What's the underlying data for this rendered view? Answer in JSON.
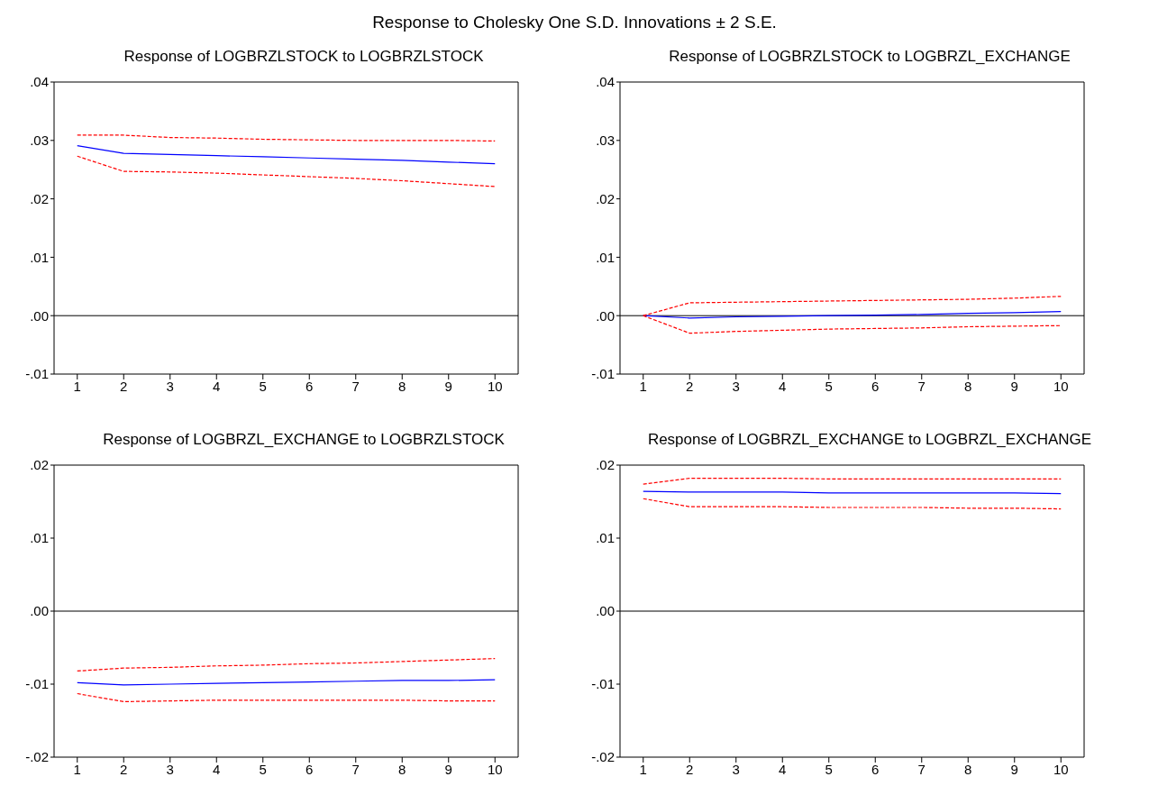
{
  "chart_data": [
    {
      "type": "line",
      "title": "Response of LOGBRZLSTOCK to LOGBRZLSTOCK",
      "annotations": [
        "Response to Cholesky One S.D. Innovations ± 2 S.E."
      ],
      "categories": [
        "1",
        "2",
        "3",
        "4",
        "5",
        "6",
        "7",
        "8",
        "9",
        "10"
      ],
      "ylim": [
        -0.01,
        0.04
      ],
      "yticks": [
        {
          "value": -0.01,
          "label": "-.01"
        },
        {
          "value": 0,
          "label": ".00"
        },
        {
          "value": 0.01,
          "label": ".01"
        },
        {
          "value": 0.02,
          "label": ".02"
        },
        {
          "value": 0.03,
          "label": ".03"
        },
        {
          "value": 0.04,
          "label": ".04"
        }
      ],
      "grid": false,
      "legend": false,
      "ref_lines": [
        {
          "axis": "y",
          "value": 0,
          "color": "#000000"
        }
      ],
      "series": [
        {
          "color": "#0000ff",
          "line_style": "solid",
          "values": [
            0.0291,
            0.0278,
            0.0276,
            0.0274,
            0.0272,
            0.027,
            0.0268,
            0.0266,
            0.0263,
            0.026
          ]
        },
        {
          "color": "#ff0000",
          "line_style": "dashed",
          "values": [
            0.0309,
            0.0309,
            0.0305,
            0.0304,
            0.0302,
            0.0301,
            0.03,
            0.03,
            0.03,
            0.0299
          ]
        },
        {
          "color": "#ff0000",
          "line_style": "dashed",
          "values": [
            0.0273,
            0.0247,
            0.0246,
            0.0244,
            0.0241,
            0.0238,
            0.0235,
            0.0231,
            0.0226,
            0.0221
          ]
        }
      ]
    },
    {
      "type": "line",
      "title": "Response of LOGBRZLSTOCK to LOGBRZL_EXCHANGE",
      "categories": [
        "1",
        "2",
        "3",
        "4",
        "5",
        "6",
        "7",
        "8",
        "9",
        "10"
      ],
      "ylim": [
        -0.01,
        0.04
      ],
      "yticks": [
        {
          "value": -0.01,
          "label": "-.01"
        },
        {
          "value": 0,
          "label": ".00"
        },
        {
          "value": 0.01,
          "label": ".01"
        },
        {
          "value": 0.02,
          "label": ".02"
        },
        {
          "value": 0.03,
          "label": ".03"
        },
        {
          "value": 0.04,
          "label": ".04"
        }
      ],
      "grid": false,
      "legend": false,
      "ref_lines": [
        {
          "axis": "y",
          "value": 0,
          "color": "#000000"
        }
      ],
      "series": [
        {
          "color": "#0000ff",
          "line_style": "solid",
          "values": [
            0,
            -0.0004,
            -0.0002,
            -0.0001,
            0,
            0.0001,
            0.0002,
            0.0004,
            0.0005,
            0.0007
          ]
        },
        {
          "color": "#ff0000",
          "line_style": "dashed",
          "values": [
            0,
            0.0022,
            0.0023,
            0.0024,
            0.0025,
            0.0026,
            0.0027,
            0.0028,
            0.003,
            0.0033
          ]
        },
        {
          "color": "#ff0000",
          "line_style": "dashed",
          "values": [
            0,
            -0.003,
            -0.0027,
            -0.0025,
            -0.0023,
            -0.0022,
            -0.0021,
            -0.0019,
            -0.0018,
            -0.0017
          ]
        }
      ]
    },
    {
      "type": "line",
      "title": "Response of LOGBRZL_EXCHANGE to LOGBRZLSTOCK",
      "categories": [
        "1",
        "2",
        "3",
        "4",
        "5",
        "6",
        "7",
        "8",
        "9",
        "10"
      ],
      "ylim": [
        -0.02,
        0.02
      ],
      "yticks": [
        {
          "value": -0.02,
          "label": "-.02"
        },
        {
          "value": -0.01,
          "label": "-.01"
        },
        {
          "value": 0,
          "label": ".00"
        },
        {
          "value": 0.01,
          "label": ".01"
        },
        {
          "value": 0.02,
          "label": ".02"
        }
      ],
      "grid": false,
      "legend": false,
      "ref_lines": [
        {
          "axis": "y",
          "value": 0,
          "color": "#000000"
        }
      ],
      "series": [
        {
          "color": "#0000ff",
          "line_style": "solid",
          "values": [
            -0.0098,
            -0.0101,
            -0.01,
            -0.0099,
            -0.0098,
            -0.0097,
            -0.0096,
            -0.0095,
            -0.0095,
            -0.0094
          ]
        },
        {
          "color": "#ff0000",
          "line_style": "dashed",
          "values": [
            -0.0082,
            -0.0078,
            -0.0077,
            -0.0075,
            -0.0074,
            -0.0072,
            -0.0071,
            -0.0069,
            -0.0067,
            -0.0065
          ]
        },
        {
          "color": "#ff0000",
          "line_style": "dashed",
          "values": [
            -0.0113,
            -0.0124,
            -0.0123,
            -0.0122,
            -0.0122,
            -0.0122,
            -0.0122,
            -0.0122,
            -0.0123,
            -0.0123
          ]
        }
      ]
    },
    {
      "type": "line",
      "title": "Response of LOGBRZL_EXCHANGE to LOGBRZL_EXCHANGE",
      "categories": [
        "1",
        "2",
        "3",
        "4",
        "5",
        "6",
        "7",
        "8",
        "9",
        "10"
      ],
      "ylim": [
        -0.02,
        0.02
      ],
      "yticks": [
        {
          "value": -0.02,
          "label": "-.02"
        },
        {
          "value": -0.01,
          "label": "-.01"
        },
        {
          "value": 0,
          "label": ".00"
        },
        {
          "value": 0.01,
          "label": ".01"
        },
        {
          "value": 0.02,
          "label": ".02"
        }
      ],
      "grid": false,
      "legend": false,
      "ref_lines": [
        {
          "axis": "y",
          "value": 0,
          "color": "#000000"
        }
      ],
      "series": [
        {
          "color": "#0000ff",
          "line_style": "solid",
          "values": [
            0.0164,
            0.0163,
            0.0163,
            0.0163,
            0.0162,
            0.0162,
            0.0162,
            0.0162,
            0.0162,
            0.0161
          ]
        },
        {
          "color": "#ff0000",
          "line_style": "dashed",
          "values": [
            0.0174,
            0.0182,
            0.0182,
            0.0182,
            0.0181,
            0.0181,
            0.0181,
            0.0181,
            0.0181,
            0.0181
          ]
        },
        {
          "color": "#ff0000",
          "line_style": "dashed",
          "values": [
            0.0154,
            0.0143,
            0.0143,
            0.0143,
            0.0142,
            0.0142,
            0.0142,
            0.0141,
            0.0141,
            0.014
          ]
        }
      ]
    }
  ]
}
